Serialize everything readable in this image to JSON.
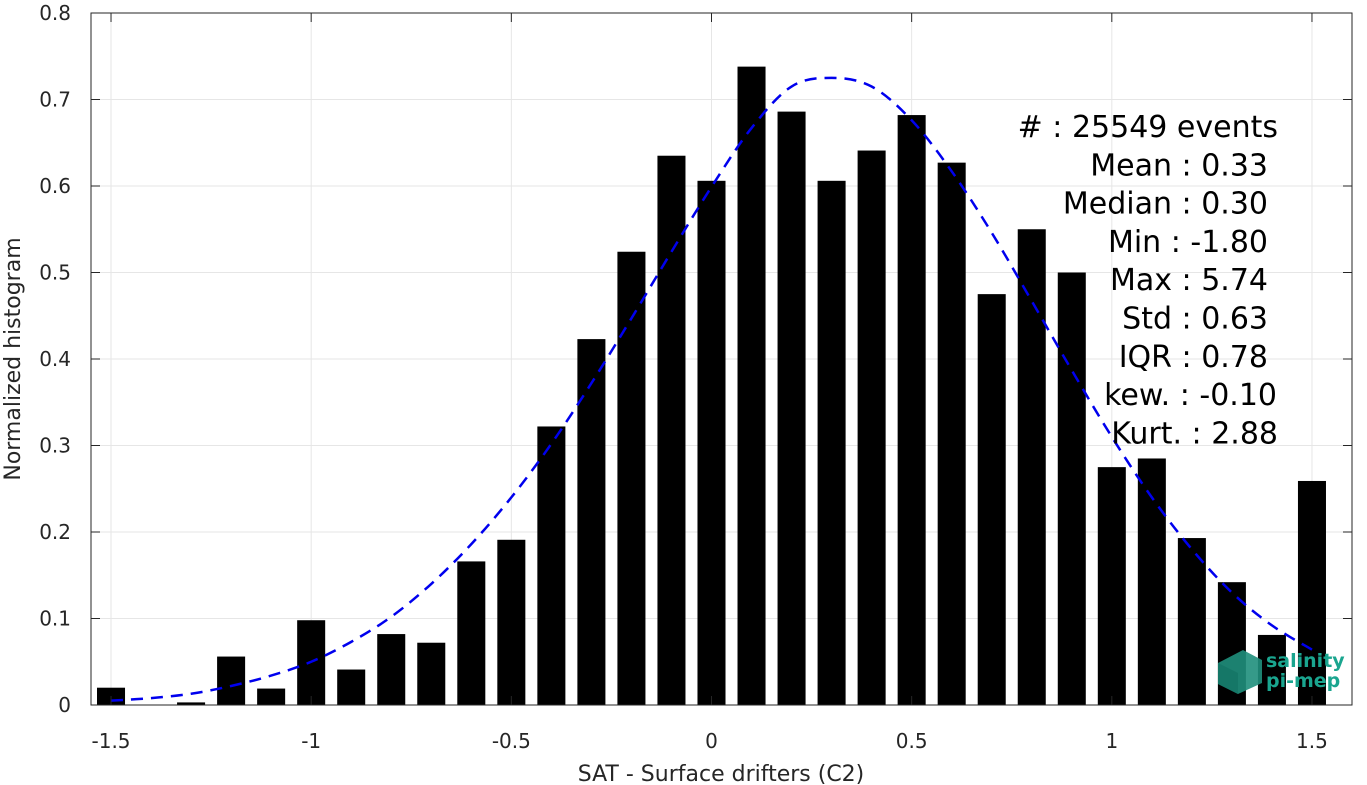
{
  "chart_data": {
    "type": "bar",
    "xlabel": "SAT - Surface drifters (C2)",
    "ylabel": "Normalized histogram",
    "xlim": [
      -1.55,
      1.6
    ],
    "ylim": [
      0,
      0.8
    ],
    "xticks": [
      -1.5,
      -1,
      -0.5,
      0,
      0.5,
      1,
      1.5
    ],
    "xtick_labels": [
      "-1.5",
      "-1",
      "-0.5",
      "0",
      "0.5",
      "1",
      "1.5"
    ],
    "yticks": [
      0,
      0.1,
      0.2,
      0.3,
      0.4,
      0.5,
      0.6,
      0.7,
      0.8
    ],
    "ytick_labels": [
      "0",
      "0.1",
      "0.2",
      "0.3",
      "0.4",
      "0.5",
      "0.6",
      "0.7",
      "0.8"
    ],
    "grid": true,
    "bin_width": 0.07,
    "bars": {
      "color": "#000000",
      "x": [
        -1.5,
        -1.4,
        -1.3,
        -1.2,
        -1.1,
        -1.0,
        -0.9,
        -0.8,
        -0.7,
        -0.6,
        -0.5,
        -0.4,
        -0.3,
        -0.2,
        -0.1,
        0.0,
        0.1,
        0.2,
        0.3,
        0.4,
        0.5,
        0.6,
        0.7,
        0.8,
        0.9,
        1.0,
        1.1,
        1.2,
        1.3,
        1.4,
        1.5
      ],
      "values": [
        0.02,
        0.0,
        0.003,
        0.056,
        0.019,
        0.098,
        0.041,
        0.082,
        0.072,
        0.166,
        0.191,
        0.322,
        0.423,
        0.524,
        0.635,
        0.606,
        0.738,
        0.686,
        0.606,
        0.641,
        0.682,
        0.627,
        0.475,
        0.55,
        0.5,
        0.275,
        0.285,
        0.193,
        0.142,
        0.081,
        0.259
      ]
    },
    "fit_curve": {
      "color": "#0000ee",
      "style": "dashed",
      "x": [
        -1.5,
        -1.4,
        -1.3,
        -1.2,
        -1.1,
        -1.0,
        -0.9,
        -0.8,
        -0.7,
        -0.6,
        -0.5,
        -0.4,
        -0.3,
        -0.2,
        -0.1,
        0.0,
        0.1,
        0.2,
        0.3,
        0.4,
        0.5,
        0.6,
        0.7,
        0.8,
        0.9,
        1.0,
        1.1,
        1.2,
        1.3,
        1.4,
        1.5
      ],
      "y": [
        0.005,
        0.008,
        0.013,
        0.022,
        0.034,
        0.05,
        0.073,
        0.102,
        0.14,
        0.186,
        0.24,
        0.302,
        0.372,
        0.447,
        0.524,
        0.599,
        0.667,
        0.715,
        0.725,
        0.715,
        0.676,
        0.617,
        0.546,
        0.467,
        0.387,
        0.31,
        0.24,
        0.18,
        0.13,
        0.092,
        0.064
      ]
    },
    "stats": [
      "#  : 25549 events",
      "Mean : 0.33",
      "Median : 0.30",
      "Min : -1.80",
      "Max : 5.74",
      "Std : 0.63",
      "IQR : 0.78",
      "kew. : -0.10",
      "Kurt. : 2.88"
    ],
    "logo": {
      "line1": "salinity",
      "line2": "pi-mep",
      "color": "#1aa58f"
    }
  }
}
